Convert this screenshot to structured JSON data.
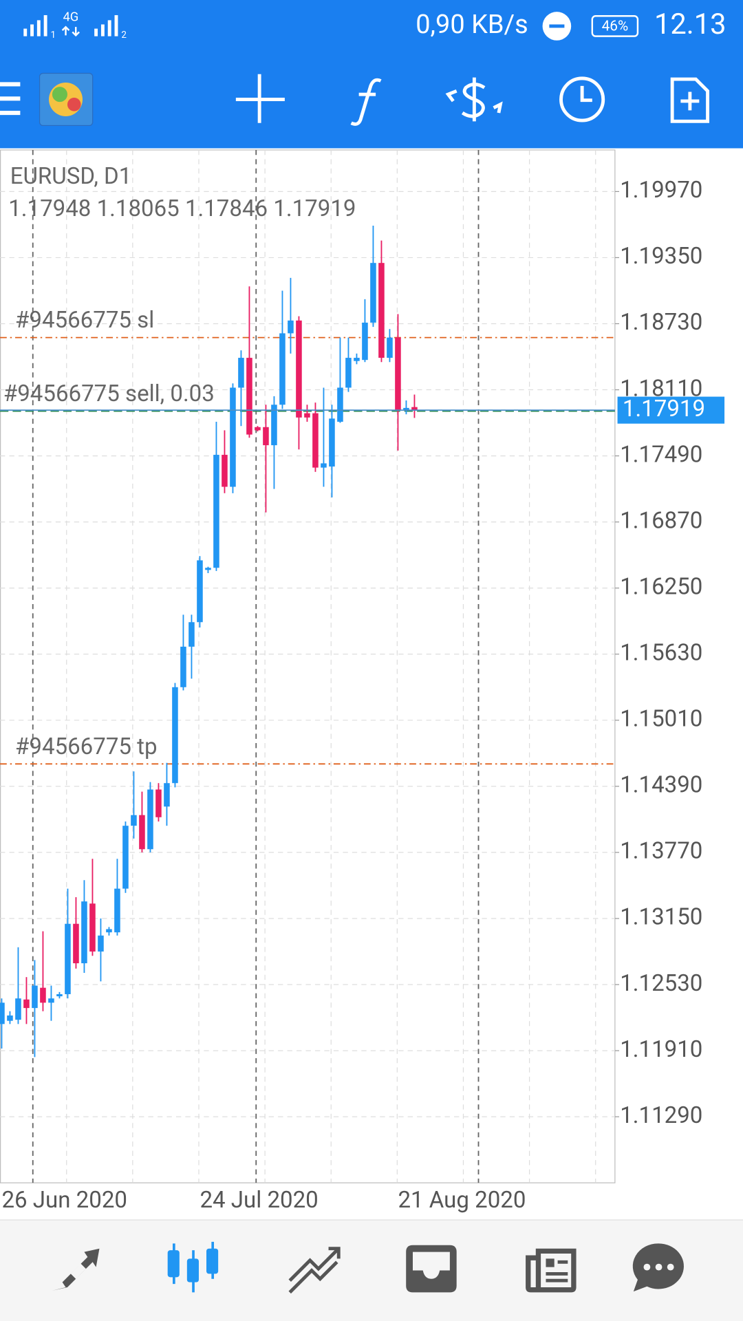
{
  "status_bar": {
    "sim1": "1",
    "network": "4G",
    "sim2": "2",
    "speed": "0,90 KB/s",
    "battery": "46%",
    "time": "12.13"
  },
  "chart": {
    "type": "candlestick",
    "symbol": "EURUSD, D1",
    "up_color": "#2196f3",
    "down_color": "#e91e63",
    "categories": [
      "26 Jun 2020",
      null,
      null,
      null,
      null,
      null,
      null,
      null,
      null,
      null,
      null,
      null,
      null,
      null,
      null,
      null,
      null,
      null,
      null,
      null,
      null,
      null,
      null,
      null,
      "24 Jul 2020",
      null,
      null,
      null,
      null,
      null,
      null,
      null,
      null,
      null,
      null,
      null,
      null,
      null,
      null,
      null,
      null,
      null,
      null,
      null,
      null,
      null,
      null,
      null,
      "21 Aug 2020",
      null,
      null
    ],
    "open": [
      1.1216,
      1.1219,
      1.122,
      1.1239,
      1.1231,
      1.125,
      1.1236,
      1.1242,
      1.1244,
      1.131,
      1.1273,
      1.1329,
      1.1284,
      1.1302,
      1.1302,
      1.1343,
      1.1402,
      1.1412,
      1.138,
      1.1436,
      1.142,
      1.1442,
      1.1532,
      1.157,
      1.1593,
      1.1642,
      1.1644,
      1.175,
      1.172,
      1.1813,
      1.1841,
      1.1776,
      1.1776,
      1.1759,
      1.1797,
      1.1864,
      1.1876,
      1.1789,
      1.1789,
      1.1738,
      1.1739,
      1.1781,
      1.1813,
      1.1838,
      1.1839,
      1.1874,
      1.193,
      1.1841,
      1.186,
      1.1792,
      1.17948
    ],
    "high": [
      1.124,
      1.1228,
      1.1288,
      1.126,
      1.1276,
      1.1303,
      1.1252,
      1.1246,
      1.1343,
      1.1335,
      1.1351,
      1.1371,
      1.1315,
      1.1307,
      1.1371,
      1.1406,
      1.1453,
      1.1434,
      1.1443,
      1.1442,
      1.1461,
      1.1536,
      1.16,
      1.16,
      1.1655,
      1.1645,
      1.1781,
      1.1773,
      1.1817,
      1.1848,
      1.1908,
      1.1777,
      1.1797,
      1.1805,
      1.1904,
      1.1916,
      1.188,
      1.1797,
      1.1799,
      1.1813,
      1.1797,
      1.186,
      1.186,
      1.1845,
      1.1896,
      1.1965,
      1.1951,
      1.1868,
      1.1882,
      1.1801,
      1.18065
    ],
    "low": [
      1.1193,
      1.1216,
      1.1216,
      1.1216,
      1.1185,
      1.1228,
      1.1219,
      1.124,
      1.124,
      1.1268,
      1.1264,
      1.128,
      1.1256,
      1.1299,
      1.1299,
      1.1339,
      1.139,
      1.1377,
      1.1377,
      1.1406,
      1.1402,
      1.1438,
      1.1529,
      1.154,
      1.1588,
      1.1639,
      1.1641,
      1.1714,
      1.1714,
      1.1777,
      1.1766,
      1.1772,
      1.1696,
      1.1718,
      1.1793,
      1.1845,
      1.1755,
      1.1781,
      1.1734,
      1.172,
      1.171,
      1.178,
      1.1809,
      1.1835,
      1.1837,
      1.187,
      1.1837,
      1.1837,
      1.1754,
      1.1788,
      1.17846
    ],
    "close": [
      1.1236,
      1.1224,
      1.124,
      1.1231,
      1.1252,
      1.1236,
      1.124,
      1.1244,
      1.131,
      1.1273,
      1.1331,
      1.1284,
      1.1299,
      1.1305,
      1.1343,
      1.1402,
      1.1412,
      1.138,
      1.1436,
      1.141,
      1.1442,
      1.1532,
      1.157,
      1.1593,
      1.1651,
      1.1644,
      1.175,
      1.172,
      1.1813,
      1.1841,
      1.1769,
      1.1773,
      1.1759,
      1.1797,
      1.1864,
      1.1876,
      1.1785,
      1.1785,
      1.1738,
      1.1742,
      1.1784,
      1.1813,
      1.1841,
      1.1841,
      1.1874,
      1.193,
      1.1841,
      1.186,
      1.1792,
      1.1794,
      1.17919
    ],
    "ylim": [
      1.2036,
      1.1067
    ],
    "yticks": [
      {
        "value": 1.1997,
        "label": "1.19970"
      },
      {
        "value": 1.1935,
        "label": "1.19350"
      },
      {
        "value": 1.1873,
        "label": "1.18730"
      },
      {
        "value": 1.1811,
        "label": "1.18110"
      },
      {
        "value": 1.1749,
        "label": "1.17490"
      },
      {
        "value": 1.1687,
        "label": "1.16870"
      },
      {
        "value": 1.1625,
        "label": "1.16250"
      },
      {
        "value": 1.1563,
        "label": "1.15630"
      },
      {
        "value": 1.1501,
        "label": "1.15010"
      },
      {
        "value": 1.1439,
        "label": "1.14390"
      },
      {
        "value": 1.1377,
        "label": "1.13770"
      },
      {
        "value": 1.1315,
        "label": "1.13150"
      },
      {
        "value": 1.1253,
        "label": "1.12530"
      },
      {
        "value": 1.1191,
        "label": "1.11910"
      },
      {
        "value": 1.1129,
        "label": "1.11290"
      }
    ],
    "grid": true,
    "order_lines": [
      {
        "label": "#94566775 sl",
        "price": 1.186,
        "color": "#e0601c"
      },
      {
        "label": "#94566775 tp",
        "price": 1.146,
        "color": "#e0601c"
      },
      {
        "label": "#94566775 sell, 0.03",
        "price": 1.1791,
        "color": "#2e8b57"
      }
    ]
  }
}
